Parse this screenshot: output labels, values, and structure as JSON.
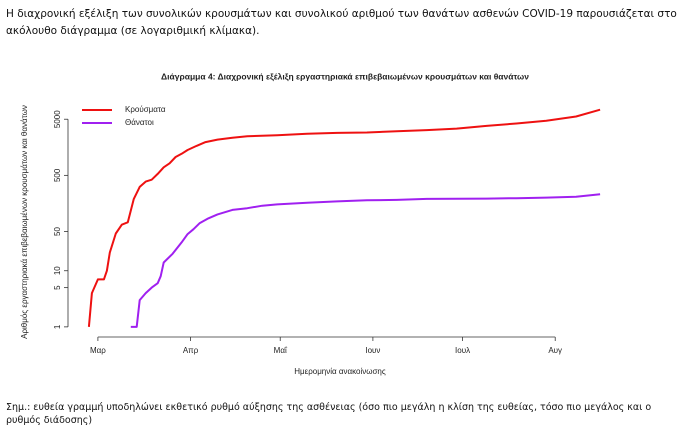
{
  "header": {
    "text": "Η διαχρονική εξέλιξη των συνολικών κρουσμάτων και συνολικού αριθμού των θανάτων ασθενών COVID-19 παρουσιάζεται στο ακόλουθο διάγραμμα (σε λογαριθμική κλίμακα)."
  },
  "chart_data": {
    "type": "line",
    "title": "Διάγραμμα 4: Διαχρονική εξέλιξη εργαστηριακά επιβεβαιωμένων κρουσμάτων και θανάτων",
    "xlabel": "Ημερομηνία ανακοίνωσης",
    "ylabel": "Αριθμός εργαστηριακά επιβεβαιωμένων κρουσμάτων και θανάτων",
    "log_y": true,
    "xlim": [
      -10,
      173
    ],
    "xticks": [
      {
        "value": 0,
        "label": "Μαρ"
      },
      {
        "value": 31,
        "label": "Απρ"
      },
      {
        "value": 61,
        "label": "Μαΐ"
      },
      {
        "value": 92,
        "label": "Ιουν"
      },
      {
        "value": 122,
        "label": "Ιουλ"
      },
      {
        "value": 153,
        "label": "Αυγ"
      }
    ],
    "ylim": [
      0.66,
      11000
    ],
    "yticks": [
      1,
      5,
      10,
      50,
      500,
      5000
    ],
    "legend": "top-left",
    "series": [
      {
        "name": "Κρούσματα",
        "color": "#ee1111",
        "x": [
          -3,
          -2,
          0,
          2,
          3,
          4,
          6,
          8,
          10,
          12,
          14,
          16,
          18,
          20,
          22,
          24,
          26,
          28,
          30,
          33,
          36,
          40,
          45,
          50,
          60,
          70,
          80,
          90,
          100,
          110,
          120,
          130,
          140,
          150,
          160,
          168
        ],
        "values": [
          1,
          4,
          7,
          7,
          10,
          21,
          46,
          66,
          73,
          190,
          312,
          387,
          418,
          530,
          695,
          821,
          1061,
          1212,
          1415,
          1673,
          1955,
          2170,
          2330,
          2490,
          2600,
          2760,
          2850,
          2900,
          3050,
          3200,
          3400,
          3800,
          4200,
          4700,
          5600,
          7400
        ]
      },
      {
        "name": "Θάνατοι",
        "color": "#a020f0",
        "x": [
          11,
          13,
          14,
          16,
          18,
          20,
          21,
          22,
          25,
          28,
          30,
          32,
          34,
          37,
          40,
          45,
          50,
          55,
          60,
          70,
          80,
          90,
          100,
          110,
          120,
          130,
          140,
          150,
          160,
          168
        ],
        "values": [
          1,
          1,
          3,
          4,
          5,
          6,
          8,
          14,
          20,
          32,
          45,
          55,
          70,
          86,
          101,
          121,
          130,
          144,
          152,
          162,
          172,
          180,
          183,
          190,
          191,
          193,
          196,
          201,
          208,
          230
        ]
      }
    ]
  },
  "footnote": "Σημ.: ευθεία γραμμή υποδηλώνει εκθετικό ρυθμό αύξησης της ασθένειας (όσο πιο μεγάλη η κλίση της ευθείας, τόσο πιο μεγάλος και ο ρυθμός διάδοσης)"
}
